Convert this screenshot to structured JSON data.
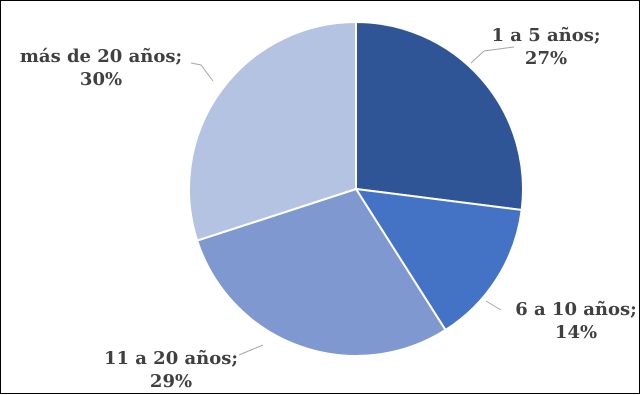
{
  "chart_data": {
    "type": "pie",
    "title": "",
    "legend": "none",
    "slices": [
      {
        "label": "1 a 5 años",
        "value": 27,
        "value_label": "27%",
        "color": "#2F5597"
      },
      {
        "label": "6 a 10 años",
        "value": 14,
        "value_label": "14%",
        "color": "#4472C4"
      },
      {
        "label": "11 a 20 años",
        "value": 29,
        "value_label": "29%",
        "color": "#7F98D0"
      },
      {
        "label": "más de 20 años",
        "value": 30,
        "value_label": "30%",
        "color": "#B4C3E2"
      }
    ]
  }
}
